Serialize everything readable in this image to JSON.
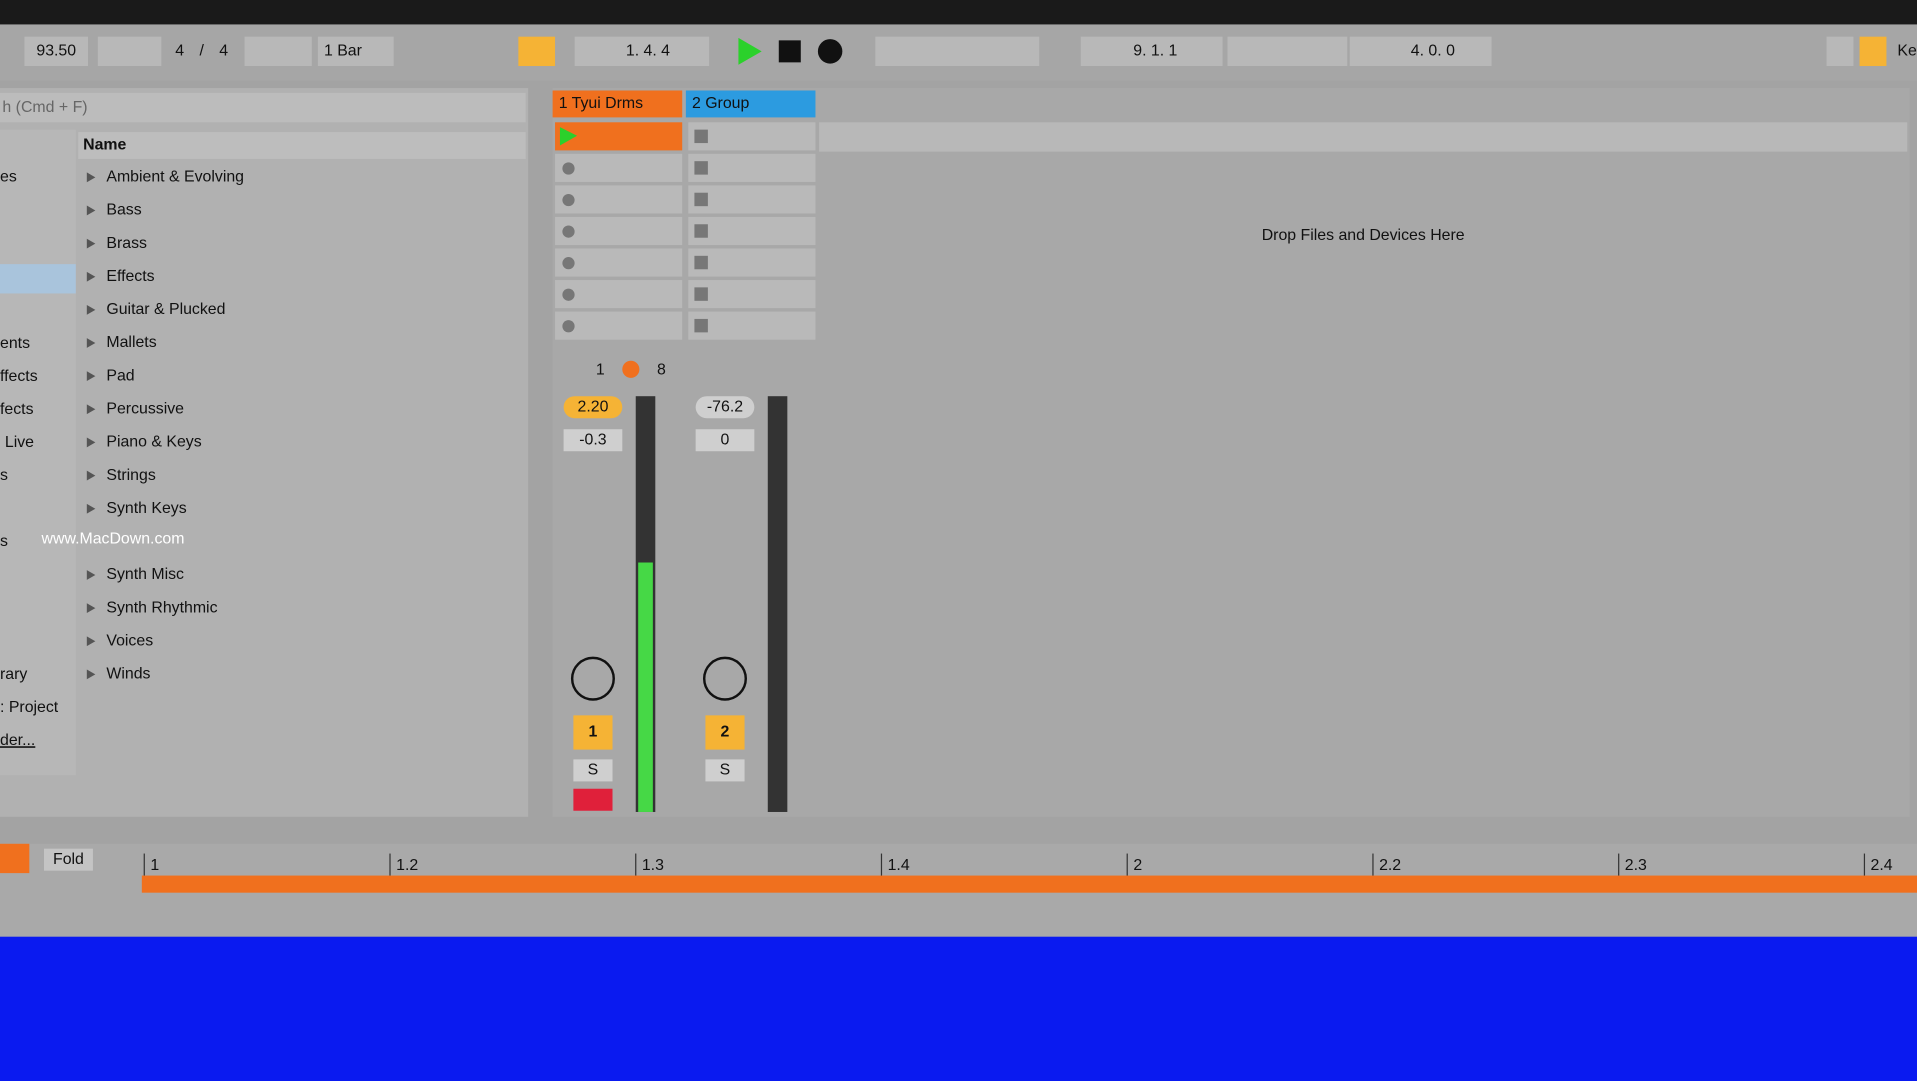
{
  "toolbar": {
    "tempo": "93.50",
    "sig_num": "4",
    "sig_sep": "/",
    "sig_den": "4",
    "quantize": "1 Bar",
    "position": "1. 4. 4",
    "loop_start": "9. 1. 1",
    "loop_length": "4. 0. 0",
    "key_label": "Ke"
  },
  "browser": {
    "search": "h (Cmd + F)",
    "sidebar": [
      "es",
      "ents",
      "ffects",
      "fects",
      "Live",
      "s",
      "s",
      "rary",
      ": Project",
      "der..."
    ],
    "header": "Name",
    "items": [
      "Ambient & Evolving",
      "Bass",
      "Brass",
      "Effects",
      "Guitar & Plucked",
      "Mallets",
      "Pad",
      "Percussive",
      "Piano & Keys",
      "Strings",
      "Synth Keys",
      "Synth Misc",
      "Synth Rhythmic",
      "Voices",
      "Winds"
    ]
  },
  "session": {
    "tracks": [
      {
        "name": "1 Tyui Drms",
        "volume": "2.20",
        "pan": "-0.3",
        "number": "1",
        "solo": "S"
      },
      {
        "name": "2 Group",
        "volume": "-76.2",
        "pan": "0",
        "number": "2",
        "solo": "S"
      }
    ],
    "io_in": "1",
    "io_out": "8",
    "drop_hint": "Drop Files and Devices Here"
  },
  "arrangement": {
    "fold": "Fold",
    "ruler": [
      "1",
      "1.2",
      "1.3",
      "1.4",
      "2",
      "2.2",
      "2.3",
      "2.4"
    ]
  },
  "watermark": "www.MacDown.com"
}
